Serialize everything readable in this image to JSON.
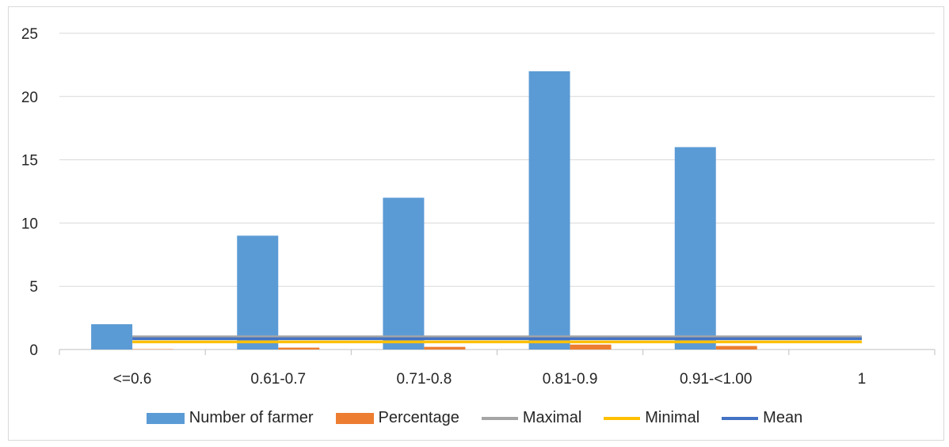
{
  "chart_data": {
    "type": "bar",
    "categories": [
      "<=0.6",
      "0.61-0.7",
      "0.71-0.8",
      "0.81-0.9",
      "0.91-<1.00",
      "1"
    ],
    "ylim": [
      0,
      25
    ],
    "yticks": [
      0,
      5,
      10,
      15,
      20,
      25
    ],
    "grid": true,
    "legend_position": "bottom",
    "bar_series": [
      {
        "name": "Number of farmer",
        "color": "#5b9bd5",
        "values": [
          2,
          9,
          12,
          22,
          16,
          0
        ]
      },
      {
        "name": "Percentage",
        "color": "#ed7d31",
        "values": [
          0.03,
          0.15,
          0.21,
          0.39,
          0.28,
          0
        ]
      }
    ],
    "line_series": [
      {
        "name": "Maximal",
        "color": "#a5a5a5",
        "values": [
          1,
          1,
          1,
          1,
          1,
          1
        ]
      },
      {
        "name": "Minimal",
        "color": "#ffc000",
        "values": [
          0.6,
          0.6,
          0.6,
          0.6,
          0.6,
          0.6
        ]
      },
      {
        "name": "Mean",
        "color": "#4472c4",
        "values": [
          0.85,
          0.85,
          0.85,
          0.85,
          0.85,
          0.85
        ]
      }
    ]
  }
}
